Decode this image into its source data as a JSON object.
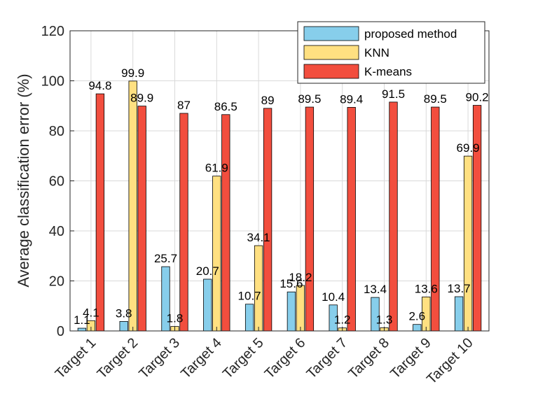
{
  "chart_data": {
    "type": "bar",
    "title": "",
    "xlabel": "",
    "ylabel": "Average classification error (%)",
    "ylim": [
      0,
      120
    ],
    "yticks": [
      0,
      20,
      40,
      60,
      80,
      100,
      120
    ],
    "grid": true,
    "legend_position": "top-right",
    "categories": [
      "Target 1",
      "Target 2",
      "Target 3",
      "Target 4",
      "Target 5",
      "Target 6",
      "Target 7",
      "Target 8",
      "Target 9",
      "Target 10"
    ],
    "series": [
      {
        "name": "proposed method",
        "color": "#87CEEB",
        "values": [
          1.1,
          3.8,
          25.7,
          20.7,
          10.7,
          15.6,
          10.4,
          13.4,
          2.6,
          13.7
        ],
        "labels": [
          "1.1",
          "3.8",
          "25.7",
          "20.7",
          "10.7",
          "15.6",
          "10.4",
          "13.4",
          "2.6",
          "13.7"
        ]
      },
      {
        "name": "KNN",
        "color": "#FFE081",
        "values": [
          4.1,
          99.9,
          1.8,
          61.9,
          34.1,
          18.2,
          1.2,
          1.3,
          13.6,
          69.9
        ],
        "labels": [
          "4.1",
          "99.9",
          "1.8",
          "61.9",
          "34.1",
          "18.2",
          "1.2",
          "1.3",
          "13.6",
          "69.9"
        ]
      },
      {
        "name": "K-means",
        "color": "#F24E3E",
        "values": [
          94.8,
          89.9,
          87,
          86.5,
          89,
          89.5,
          89.4,
          91.5,
          89.5,
          90.2
        ],
        "labels": [
          "94.8",
          "89.9",
          "87",
          "86.5",
          "89",
          "89.5",
          "89.4",
          "91.5",
          "89.5",
          "90.2"
        ]
      }
    ]
  }
}
